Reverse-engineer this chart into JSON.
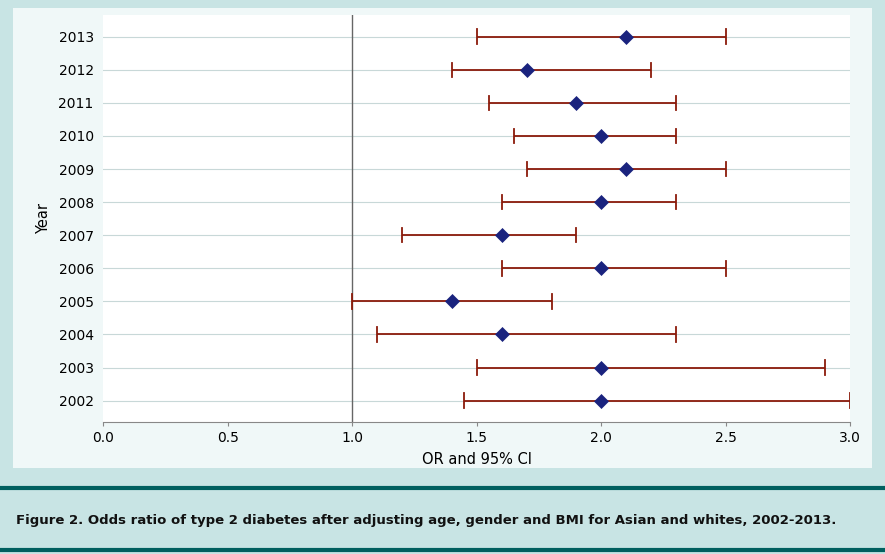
{
  "years": [
    2013,
    2012,
    2011,
    2010,
    2009,
    2008,
    2007,
    2006,
    2005,
    2004,
    2003,
    2002
  ],
  "or_values": [
    2.1,
    1.7,
    1.9,
    2.0,
    2.1,
    2.0,
    1.6,
    2.0,
    1.4,
    1.6,
    2.0,
    2.0
  ],
  "ci_lower": [
    1.5,
    1.4,
    1.55,
    1.65,
    1.7,
    1.6,
    1.2,
    1.6,
    1.0,
    1.1,
    1.5,
    1.45
  ],
  "ci_upper": [
    2.5,
    2.2,
    2.3,
    2.3,
    2.5,
    2.3,
    1.9,
    2.5,
    1.8,
    2.3,
    2.9,
    3.0
  ],
  "xlim": [
    0.0,
    3.0
  ],
  "xticks": [
    0.0,
    0.5,
    1.0,
    1.5,
    2.0,
    2.5,
    3.0
  ],
  "vline_x": 1.0,
  "xlabel": "OR and 95% CI",
  "ylabel": "Year",
  "marker_color": "#1a237e",
  "ci_color": "#8B1a0a",
  "vline_color": "#666666",
  "background_outer": "#c8e4e4",
  "background_plot_panel": "#f0f8f8",
  "background_inner": "#ffffff",
  "grid_color": "#c8d8d8",
  "figure_caption": "Figure 2. Odds ratio of type 2 diabetes after adjusting age, gender and BMI for Asian and whites, 2002-2013.",
  "caption_bar_color": "#005f5f",
  "marker_size": 7,
  "ci_linewidth": 1.3,
  "figsize": [
    8.85,
    5.54
  ],
  "dpi": 100
}
